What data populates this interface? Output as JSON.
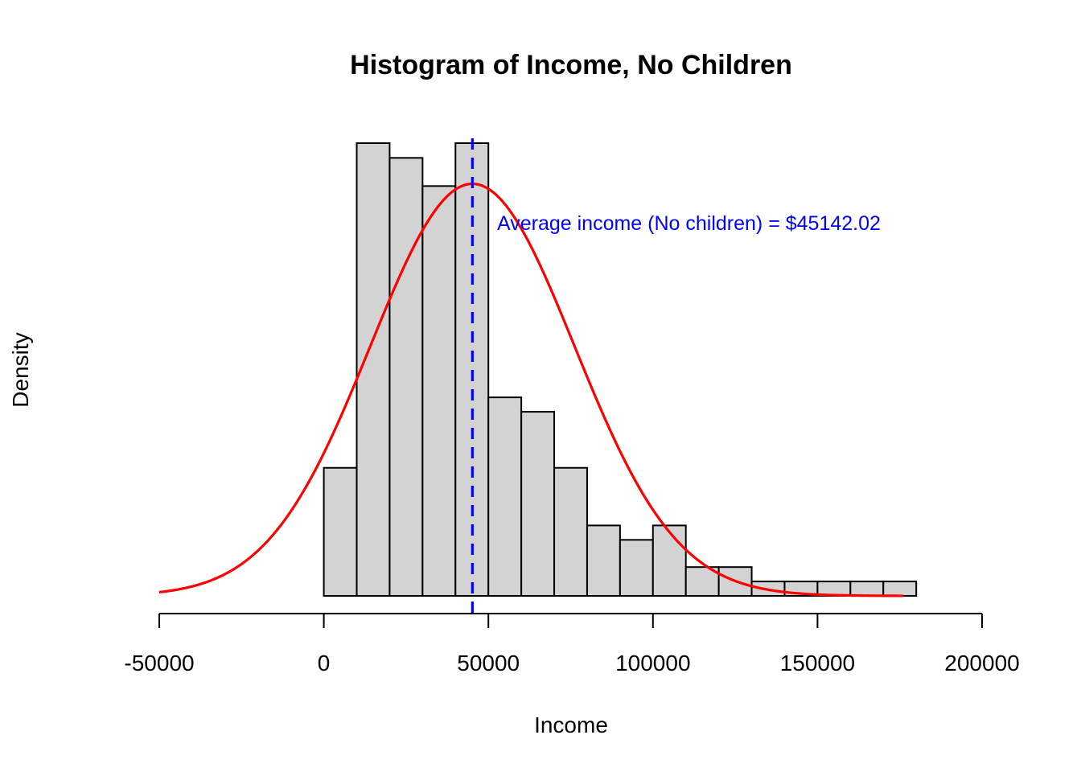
{
  "chart_data": {
    "type": "bar",
    "title": "Histogram of Income, No Children",
    "xlabel": "Income",
    "ylabel": "Density",
    "xlim": [
      -50000,
      200000
    ],
    "ylim": [
      0,
      1.38e-05
    ],
    "x_ticks": [
      "-50000",
      "0",
      "50000",
      "100000",
      "150000",
      "200000"
    ],
    "x_tick_values": [
      -50000,
      0,
      50000,
      100000,
      150000,
      200000
    ],
    "bins": [
      {
        "start": 0,
        "end": 10000,
        "density": 4e-06
      },
      {
        "start": 10000,
        "end": 20000,
        "density": 1.414e-05
      },
      {
        "start": 20000,
        "end": 30000,
        "density": 1.368e-05
      },
      {
        "start": 30000,
        "end": 40000,
        "density": 1.28e-05
      },
      {
        "start": 40000,
        "end": 50000,
        "density": 1.414e-05
      },
      {
        "start": 50000,
        "end": 60000,
        "density": 6.2e-06
      },
      {
        "start": 60000,
        "end": 70000,
        "density": 5.75e-06
      },
      {
        "start": 70000,
        "end": 80000,
        "density": 4e-06
      },
      {
        "start": 80000,
        "end": 90000,
        "density": 2.2e-06
      },
      {
        "start": 90000,
        "end": 100000,
        "density": 1.75e-06
      },
      {
        "start": 100000,
        "end": 110000,
        "density": 2.2e-06
      },
      {
        "start": 110000,
        "end": 120000,
        "density": 9e-07
      },
      {
        "start": 120000,
        "end": 130000,
        "density": 9e-07
      },
      {
        "start": 130000,
        "end": 140000,
        "density": 4.5e-07
      },
      {
        "start": 140000,
        "end": 150000,
        "density": 4.5e-07
      },
      {
        "start": 150000,
        "end": 160000,
        "density": 4.5e-07
      },
      {
        "start": 160000,
        "end": 170000,
        "density": 4.5e-07
      },
      {
        "start": 170000,
        "end": 180000,
        "density": 4.5e-07
      }
    ],
    "normal_curve": {
      "mean": 45142.02,
      "sd": 31000,
      "x_range": [
        -50000,
        176000
      ],
      "color": "#ff0000"
    },
    "mean_line": {
      "x": 45142.02,
      "color": "#0000ff"
    },
    "annotation": {
      "text": "Average income (No children) = $45142.02",
      "color": "#0000ff"
    },
    "bar_fill": "#d3d3d3",
    "bar_stroke": "#000000",
    "grid": false
  }
}
